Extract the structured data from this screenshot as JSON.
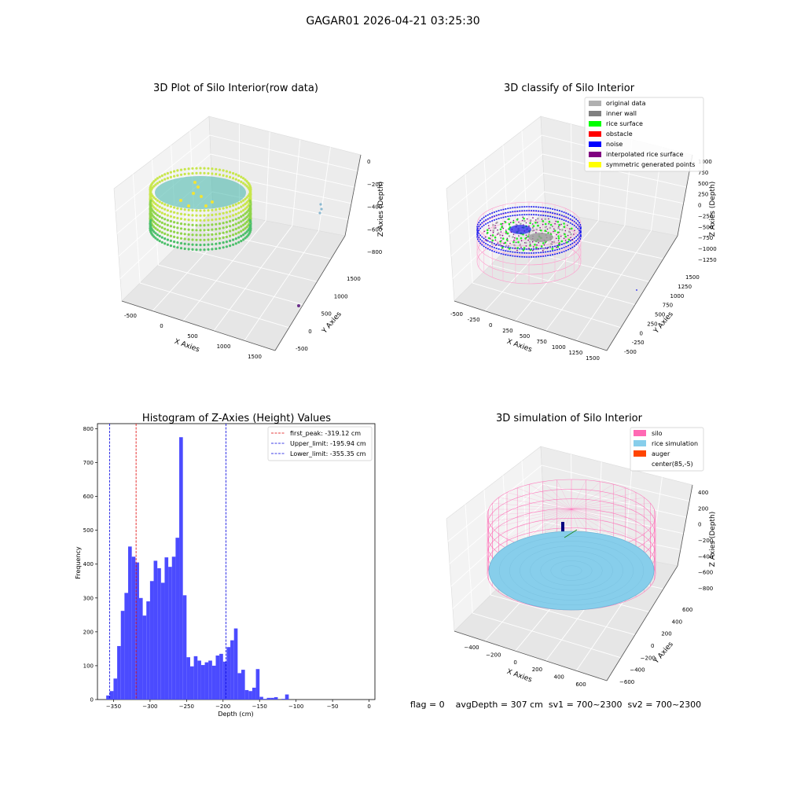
{
  "figure": {
    "suptitle": "GAGAR01 2026-04-21 03:25:30",
    "footer": "flag = 0    avgDepth = 307 cm  sv1 = 700~2300  sv2 = 700~2300"
  },
  "colors": {
    "hist_bar": "#4b4bff",
    "first_peak_line": "#e00000",
    "limit_line": "#0000e0",
    "silo": "#ff69b4",
    "rice_simulation": "#87ceeb",
    "auger": "#ff4500",
    "grid_pane": "#ececec"
  },
  "chart_data": [
    {
      "type": "scatter",
      "title": "3D Plot of Silo Interior(row data)",
      "xlabel": "X Axies",
      "ylabel": "Y Axies",
      "zlabel": "Z Axies (Depth)",
      "x_ticks": [
        "-500",
        "0",
        "500",
        "1000",
        "1500"
      ],
      "y_ticks": [
        "-500",
        "0",
        "500",
        "1000",
        "1500"
      ],
      "z_ticks": [
        "0",
        "−200",
        "−400",
        "−600",
        "−800"
      ],
      "xlim": [
        -700,
        1700
      ],
      "ylim": [
        -600,
        1600
      ],
      "zlim": [
        -950,
        50
      ],
      "notes": "dense cylindrical point cloud colored yellow-green to teal by depth"
    },
    {
      "type": "scatter",
      "title": "3D classify of Silo Interior",
      "xlabel": "X Axies",
      "ylabel": "Y Axies",
      "zlabel": "Z Axies (Depth)",
      "x_ticks": [
        "-500",
        "-250",
        "0",
        "250",
        "500",
        "750",
        "1000",
        "1250",
        "1500"
      ],
      "y_ticks": [
        "-500",
        "-250",
        "0",
        "250",
        "500",
        "750",
        "1000",
        "1250",
        "1500"
      ],
      "z_ticks": [
        "1000",
        "750",
        "500",
        "250",
        "0",
        "−250",
        "−500",
        "−750",
        "−1000",
        "−1250"
      ],
      "legend_position": "top-right",
      "legend": [
        {
          "label": "original data",
          "color": "#b0b0b0"
        },
        {
          "label": "inner wall",
          "color": "#808080"
        },
        {
          "label": "rice surface",
          "color": "#00ff00"
        },
        {
          "label": "obstacle",
          "color": "#ff0000"
        },
        {
          "label": "noise",
          "color": "#0000ff"
        },
        {
          "label": "interpolated rice surface",
          "color": "#800080"
        },
        {
          "label": "symmetric generated points",
          "color": "#ffff00"
        }
      ]
    },
    {
      "type": "bar",
      "title": "Histogram of Z-Axies (Height) Values",
      "xlabel": "Depth (cm)",
      "ylabel": "Frequency",
      "xlim": [
        -372,
        8
      ],
      "ylim": [
        0,
        815
      ],
      "x_ticks": [
        -350,
        -300,
        -250,
        -200,
        -150,
        -100,
        -50,
        0
      ],
      "x_tick_labels": [
        "−350",
        "−300",
        "−250",
        "−200",
        "−150",
        "−100",
        "−50",
        "0"
      ],
      "y_ticks": [
        0,
        100,
        200,
        300,
        400,
        500,
        600,
        700,
        800
      ],
      "bin_start": -360,
      "bin_width": 5,
      "values": [
        12,
        25,
        62,
        158,
        262,
        315,
        452,
        422,
        405,
        300,
        248,
        290,
        350,
        410,
        388,
        345,
        420,
        392,
        422,
        478,
        775,
        308,
        125,
        98,
        128,
        115,
        102,
        110,
        115,
        100,
        130,
        135,
        112,
        155,
        175,
        210,
        78,
        88,
        28,
        25,
        35,
        90,
        8,
        2,
        5,
        5,
        7,
        0,
        2,
        15
      ],
      "vlines": [
        {
          "label": "first_peak: -319.12 cm",
          "x": -319.12,
          "color": "#e00000"
        },
        {
          "label": "Upper_limit: -195.94 cm",
          "x": -195.94,
          "color": "#0000e0"
        },
        {
          "label": "Lower_limit: -355.35 cm",
          "x": -355.35,
          "color": "#0000e0"
        }
      ],
      "legend_position": "top-right"
    },
    {
      "type": "scatter",
      "title": "3D simulation of Silo Interior",
      "xlabel": "X Axies",
      "ylabel": "Y Axies",
      "zlabel": "Z Axies (Depth)",
      "x_ticks": [
        "−400",
        "−200",
        "0",
        "200",
        "400",
        "600"
      ],
      "y_ticks": [
        "−600",
        "−400",
        "−200",
        "0",
        "200",
        "400",
        "600"
      ],
      "z_ticks": [
        "400",
        "200",
        "0",
        "−200",
        "−400",
        "−600",
        "−800"
      ],
      "legend_position": "top-right",
      "legend": [
        {
          "label": "silo",
          "color": "#ff69b4"
        },
        {
          "label": "rice simulation",
          "color": "#87ceeb"
        },
        {
          "label": "auger",
          "color": "#ff4500"
        },
        {
          "label": "center(85,-5)",
          "color": "none"
        }
      ]
    }
  ]
}
